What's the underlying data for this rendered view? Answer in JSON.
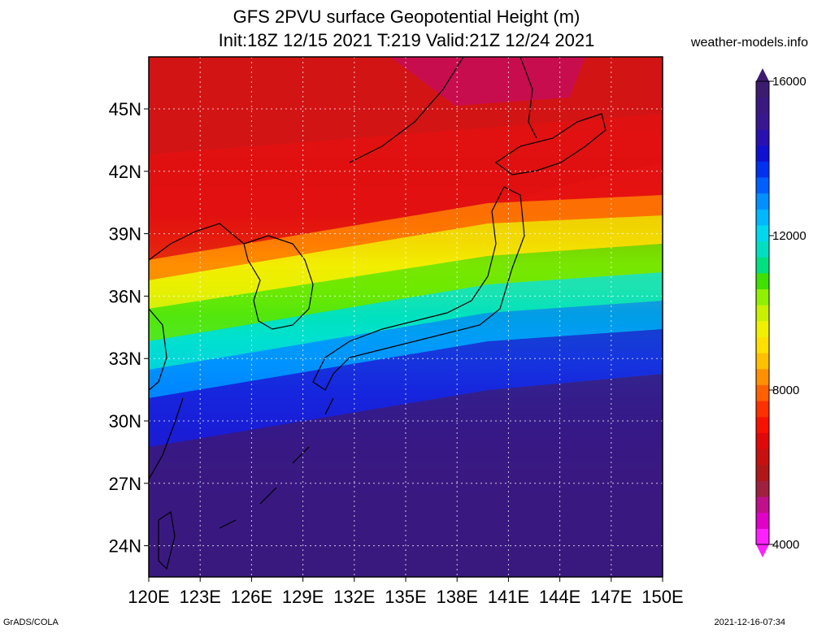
{
  "header": {
    "title_line1": "GFS 2PVU surface Geopotential Height (m)",
    "title_line2": "Init:18Z 12/15 2021 T:219 Valid:21Z 12/24 2021",
    "site": "weather-models.info"
  },
  "footer": {
    "left": "GrADS/COLA",
    "right": "2021-12-16-07:34"
  },
  "map": {
    "lat_labels": [
      "45N",
      "42N",
      "39N",
      "36N",
      "33N",
      "30N",
      "27N",
      "24N"
    ],
    "lon_labels": [
      "120E",
      "123E",
      "126E",
      "129E",
      "132E",
      "135E",
      "138E",
      "141E",
      "144E",
      "147E",
      "150E"
    ],
    "lat_values": [
      45,
      42,
      39,
      36,
      33,
      30,
      27,
      24
    ],
    "lon_values": [
      120,
      123,
      126,
      129,
      132,
      135,
      138,
      141,
      144,
      147,
      150
    ],
    "lat_range": [
      22.5,
      47.5
    ],
    "lon_range": [
      120,
      150
    ],
    "grid": true
  },
  "colorbar": {
    "labels": [
      "16000",
      "12000",
      "8000",
      "4000"
    ],
    "label_values": [
      16000,
      12000,
      8000,
      4000
    ],
    "range": [
      4000,
      16000
    ],
    "colors": [
      "#ff20ff",
      "#e000c8",
      "#c0108c",
      "#a02040",
      "#b01818",
      "#c81010",
      "#e00808",
      "#f81000",
      "#ff3000",
      "#ff6000",
      "#ff9000",
      "#ffc000",
      "#ffe000",
      "#f0f000",
      "#c8f000",
      "#90f000",
      "#40e000",
      "#00e080",
      "#00e0c0",
      "#00d8f0",
      "#00b8ff",
      "#0090ff",
      "#0060ff",
      "#0030f0",
      "#1010d0",
      "#2a10b0",
      "#381890",
      "#3a1a80",
      "#3c1c70"
    ]
  }
}
